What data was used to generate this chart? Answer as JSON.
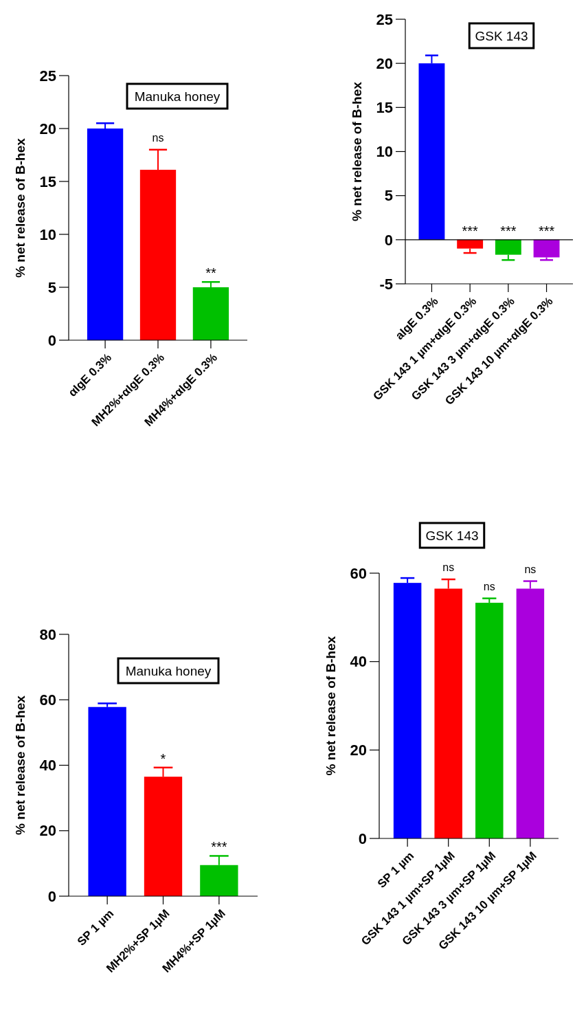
{
  "chart_data": [
    {
      "type": "bar",
      "title": "Manuka honey",
      "ylabel": "% net release of B-hex",
      "categories": [
        "αIgE 0.3%",
        "MH2%+αIgE 0.3%",
        "MH4%+αIgE 0.3%"
      ],
      "values": [
        20.0,
        16.1,
        5.0
      ],
      "colors": [
        "#0000ff",
        "#ff0000",
        "#00c000"
      ],
      "errors": [
        0.5,
        1.9,
        0.5
      ],
      "ylim": [
        0,
        25
      ],
      "yticks": [
        0,
        5,
        10,
        15,
        20,
        25
      ],
      "annotations": [
        {
          "text": "ns",
          "x": "MH2%+αIgE 0.3%",
          "y": 18.0
        },
        {
          "text": "**",
          "x": "MH4%+αIgE 0.3%",
          "y": 5.5
        }
      ]
    },
    {
      "type": "bar",
      "title": "GSK 143",
      "ylabel": "% net release of B-hex",
      "categories": [
        "aIgE 0.3%",
        "GSK 143 1 µm+αIgE 0.3%",
        "GSK 143 3 µm+αIgE 0.3%",
        "GSK 143 10 µm+αIgE 0.3%"
      ],
      "values": [
        20.0,
        -1.0,
        -1.7,
        -2.0
      ],
      "colors": [
        "#0000ff",
        "#ff0000",
        "#00c000",
        "#aa00dd"
      ],
      "errors": [
        0.9,
        0.5,
        0.6,
        0.3
      ],
      "ylim": [
        -5,
        25
      ],
      "yticks": [
        -5,
        0,
        5,
        10,
        15,
        20,
        25
      ],
      "ref_lines": [
        {
          "axis": "y",
          "value": 0,
          "color": "#000000"
        }
      ],
      "annotations": [
        {
          "text": "***",
          "x": "GSK 143 1 µm+αIgE 0.3%",
          "y": 0
        },
        {
          "text": "***",
          "x": "GSK 143 3 µm+αIgE 0.3%",
          "y": 0
        },
        {
          "text": "***",
          "x": "GSK 143 10 µm+αIgE 0.3%",
          "y": 0
        }
      ]
    },
    {
      "type": "bar",
      "title": "Manuka honey",
      "ylabel": "% net release of B-hex",
      "categories": [
        "SP 1 µm",
        "MH2%+SP 1µM",
        "MH4%+SP 1µM"
      ],
      "values": [
        57.8,
        36.5,
        9.5
      ],
      "colors": [
        "#0000ff",
        "#ff0000",
        "#00c000"
      ],
      "errors": [
        1.1,
        2.8,
        2.8
      ],
      "ylim": [
        0,
        80
      ],
      "yticks": [
        0,
        20,
        40,
        60,
        80
      ],
      "annotations": [
        {
          "text": "*",
          "x": "MH2%+SP 1µM",
          "y": 39.3
        },
        {
          "text": "***",
          "x": "MH4%+SP 1µM",
          "y": 12.3
        }
      ]
    },
    {
      "type": "bar",
      "title": "GSK 143",
      "ylabel": "% net release of B-hex",
      "categories": [
        "SP 1 µm",
        "GSK 143 1 µm+SP 1µM",
        "GSK 143 3 µm+SP 1µM",
        "GSK 143 10 µm+SP 1µM"
      ],
      "values": [
        57.8,
        56.5,
        53.3,
        56.5
      ],
      "colors": [
        "#0000ff",
        "#ff0000",
        "#00c000",
        "#aa00dd"
      ],
      "errors": [
        1.1,
        2.1,
        1.0,
        1.7
      ],
      "ylim": [
        0,
        60
      ],
      "yticks": [
        0,
        20,
        40,
        60
      ],
      "annotations": [
        {
          "text": "ns",
          "x": "GSK 143 1 µm+SP 1µM",
          "y": 58.6
        },
        {
          "text": "ns",
          "x": "GSK 143 3 µm+SP 1µM",
          "y": 54.3
        },
        {
          "text": "ns",
          "x": "GSK 143 10 µm+SP 1µM",
          "y": 58.2
        }
      ]
    }
  ]
}
